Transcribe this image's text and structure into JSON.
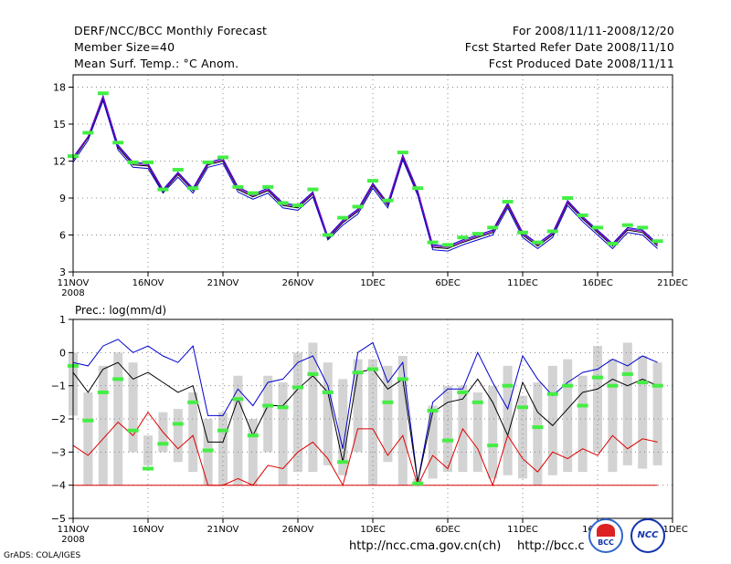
{
  "header": {
    "title": "DERF/NCC/BCC Monthly Forecast",
    "member_size": "Member Size=40",
    "variable": "Mean Surf. Temp.: °C Anom.",
    "period": "For 2008/11/11-2008/12/20",
    "started": "Fcst Started Refer Date 2008/11/10",
    "produced": "Fcst Produced Date 2008/11/11"
  },
  "footer": {
    "url1": "http://ncc.cma.gov.cn(ch)",
    "url2": "http://bcc.c",
    "grads": "GrADS: COLA/IGES",
    "logo1": "BCC",
    "logo2": "NCC"
  },
  "colors": {
    "blue": "#0000cc",
    "black": "#000000",
    "red": "#dd0000",
    "green": "#44ee44",
    "purple": "#9900cc",
    "bar": "#d3d3d3",
    "grid": "#888888"
  },
  "chart_data": [
    {
      "type": "line",
      "title": "Mean Surf. Temp.: °C Anom.",
      "x_days": 40,
      "xticks": [
        {
          "day": 1,
          "label": "11NOV",
          "sub": "2008"
        },
        {
          "day": 6,
          "label": "16NOV"
        },
        {
          "day": 11,
          "label": "21NOV"
        },
        {
          "day": 16,
          "label": "26NOV"
        },
        {
          "day": 21,
          "label": "1DEC"
        },
        {
          "day": 26,
          "label": "6DEC"
        },
        {
          "day": 31,
          "label": "11DEC"
        },
        {
          "day": 36,
          "label": "16DEC"
        },
        {
          "day": 41,
          "label": "21DEC"
        }
      ],
      "ylim": [
        3,
        19
      ],
      "yticks": [
        3,
        6,
        9,
        12,
        15,
        18
      ],
      "series": [
        {
          "name": "upper",
          "color": "#0000cc",
          "values": [
            12.3,
            14.0,
            17.3,
            13.3,
            11.9,
            11.8,
            9.7,
            11.1,
            9.8,
            11.9,
            12.2,
            9.9,
            9.3,
            9.8,
            8.6,
            8.4,
            9.5,
            5.9,
            7.2,
            8.1,
            10.2,
            8.6,
            12.5,
            9.6,
            5.2,
            5.1,
            5.6,
            6.0,
            6.4,
            8.6,
            6.2,
            5.3,
            6.2,
            8.8,
            7.5,
            6.4,
            5.3,
            6.6,
            6.4,
            5.3
          ]
        },
        {
          "name": "mean",
          "color": "#000000",
          "values": [
            12.1,
            13.9,
            17.1,
            13.1,
            11.7,
            11.6,
            9.5,
            10.9,
            9.6,
            11.7,
            12.0,
            9.7,
            9.1,
            9.6,
            8.4,
            8.2,
            9.3,
            5.7,
            7.0,
            7.9,
            10.0,
            8.4,
            12.3,
            9.4,
            5.0,
            4.9,
            5.4,
            5.8,
            6.2,
            8.4,
            6.0,
            5.1,
            6.0,
            8.6,
            7.3,
            6.2,
            5.1,
            6.4,
            6.2,
            5.1
          ]
        },
        {
          "name": "lower",
          "color": "#0000cc",
          "values": [
            11.9,
            13.7,
            16.9,
            12.9,
            11.5,
            11.4,
            9.4,
            10.7,
            9.4,
            11.5,
            11.8,
            9.5,
            8.9,
            9.4,
            8.2,
            8.0,
            9.1,
            5.6,
            6.8,
            7.7,
            9.8,
            8.2,
            12.1,
            9.2,
            4.8,
            4.7,
            5.2,
            5.6,
            6.0,
            8.2,
            5.8,
            4.9,
            5.8,
            8.4,
            7.1,
            6.0,
            4.9,
            6.2,
            6.0,
            4.9
          ]
        },
        {
          "name": "purple",
          "color": "#9900cc",
          "values": [
            12.2,
            14.0,
            17.2,
            13.2,
            11.8,
            11.7,
            9.6,
            11.0,
            9.7,
            11.8,
            12.1,
            9.8,
            9.2,
            9.7,
            8.5,
            8.3,
            9.4,
            5.8,
            7.1,
            8.0,
            10.1,
            8.5,
            12.4,
            9.5,
            5.1,
            5.0,
            5.5,
            5.9,
            6.3,
            8.5,
            6.1,
            5.2,
            6.1,
            8.7,
            7.4,
            6.3,
            5.2,
            6.5,
            6.3,
            5.2
          ]
        }
      ],
      "markers": {
        "name": "observed",
        "color": "#44ee44",
        "values": [
          12.4,
          14.3,
          17.5,
          13.5,
          11.9,
          11.9,
          9.7,
          11.3,
          9.8,
          11.9,
          12.3,
          9.9,
          9.4,
          9.9,
          8.6,
          8.4,
          9.7,
          6.0,
          7.4,
          8.3,
          10.4,
          8.8,
          12.7,
          9.8,
          5.4,
          5.2,
          5.8,
          6.1,
          6.6,
          8.7,
          6.2,
          5.4,
          6.3,
          9.0,
          7.6,
          6.6,
          5.3,
          6.8,
          6.6,
          5.5
        ]
      }
    },
    {
      "type": "line",
      "title": "Prec.: log(mm/d)",
      "x_days": 40,
      "xticks": [
        {
          "day": 1,
          "label": "11NOV",
          "sub": "2008"
        },
        {
          "day": 6,
          "label": "16NOV"
        },
        {
          "day": 11,
          "label": "21NOV"
        },
        {
          "day": 16,
          "label": "26NOV"
        },
        {
          "day": 21,
          "label": "1DEC"
        },
        {
          "day": 26,
          "label": "6DEC"
        },
        {
          "day": 31,
          "label": "11DEC"
        },
        {
          "day": 36,
          "label": "16DEC"
        },
        {
          "day": 41,
          "label": "21DEC"
        }
      ],
      "ylim": [
        -5,
        1
      ],
      "yticks": [
        -5,
        -4,
        -3,
        -2,
        -1,
        0,
        1
      ],
      "bars": {
        "name": "ensemble-range",
        "color": "#d3d3d3",
        "values": [
          [
            -1.9,
            0.0
          ],
          [
            -4.0,
            -1.2
          ],
          [
            -4.0,
            -0.4
          ],
          [
            -4.0,
            0.0
          ],
          [
            -3.0,
            -0.3
          ],
          [
            -3.4,
            -2.5
          ],
          [
            -3.0,
            -1.8
          ],
          [
            -3.3,
            -1.7
          ],
          [
            -3.6,
            -1.2
          ],
          [
            -4.0,
            -2.0
          ],
          [
            -4.0,
            -1.8
          ],
          [
            -4.0,
            -0.7
          ],
          [
            -4.0,
            -2.0
          ],
          [
            -3.0,
            -0.7
          ],
          [
            -4.0,
            -0.9
          ],
          [
            -3.6,
            0.0
          ],
          [
            -3.6,
            0.3
          ],
          [
            -3.4,
            -0.3
          ],
          [
            -3.7,
            -0.8
          ],
          [
            -3.0,
            -0.2
          ],
          [
            -4.0,
            -0.2
          ],
          [
            -3.3,
            -0.4
          ],
          [
            -4.0,
            -0.1
          ],
          [
            -4.0,
            -3.8
          ],
          [
            -3.8,
            -1.6
          ],
          [
            -3.6,
            -1.0
          ],
          [
            -3.6,
            -1.0
          ],
          [
            -3.6,
            -1.2
          ],
          [
            -3.8,
            -1.0
          ],
          [
            -3.7,
            -0.4
          ],
          [
            -3.8,
            -1.3
          ],
          [
            -4.0,
            -0.9
          ],
          [
            -3.7,
            -0.4
          ],
          [
            -3.6,
            -0.2
          ],
          [
            -3.6,
            -0.7
          ],
          [
            -3.0,
            0.2
          ],
          [
            -3.6,
            -0.2
          ],
          [
            -3.4,
            0.3
          ],
          [
            -3.5,
            -0.1
          ],
          [
            -3.4,
            -0.3
          ]
        ]
      },
      "series": [
        {
          "name": "upper",
          "color": "#0000cc",
          "values": [
            -0.3,
            -0.4,
            0.2,
            0.4,
            0.0,
            0.2,
            -0.1,
            -0.3,
            0.2,
            -1.9,
            -1.9,
            -1.1,
            -1.6,
            -0.9,
            -0.8,
            -0.3,
            -0.1,
            -1.0,
            -2.9,
            0.0,
            0.3,
            -0.9,
            -0.3,
            -3.9,
            -1.5,
            -1.1,
            -1.1,
            0.0,
            -0.9,
            -1.7,
            -0.1,
            -0.8,
            -1.3,
            -0.9,
            -0.6,
            -0.5,
            -0.2,
            -0.4,
            -0.1,
            -0.3
          ]
        },
        {
          "name": "mean",
          "color": "#000000",
          "values": [
            -0.6,
            -1.2,
            -0.5,
            -0.3,
            -0.8,
            -0.6,
            -0.9,
            -1.2,
            -1.0,
            -2.7,
            -2.7,
            -1.4,
            -2.5,
            -1.6,
            -1.6,
            -1.1,
            -0.7,
            -1.2,
            -3.3,
            -0.6,
            -0.5,
            -1.1,
            -0.8,
            -3.9,
            -1.8,
            -1.5,
            -1.4,
            -0.8,
            -1.5,
            -2.5,
            -0.9,
            -1.8,
            -2.2,
            -1.7,
            -1.2,
            -1.1,
            -0.8,
            -1.0,
            -0.8,
            -1.0
          ]
        },
        {
          "name": "lower",
          "color": "#dd0000",
          "values": [
            -2.8,
            -3.1,
            -2.6,
            -2.1,
            -2.5,
            -1.8,
            -2.4,
            -2.9,
            -2.5,
            -4.0,
            -4.0,
            -3.8,
            -4.0,
            -3.4,
            -3.5,
            -3.0,
            -2.7,
            -3.2,
            -4.0,
            -2.3,
            -2.3,
            -3.1,
            -2.5,
            -4.0,
            -3.1,
            -3.5,
            -2.3,
            -2.9,
            -4.0,
            -2.5,
            -3.2,
            -3.6,
            -3.0,
            -3.2,
            -2.9,
            -3.1,
            -2.5,
            -2.9,
            -2.6,
            -2.7
          ]
        },
        {
          "name": "floor",
          "color": "#dd0000",
          "values": [
            -4.0,
            -4.0,
            -4.0,
            -4.0,
            -4.0,
            -4.0,
            -4.0,
            -4.0,
            -4.0,
            -4.0,
            -4.0,
            -4.0,
            -4.0,
            -4.0,
            -4.0,
            -4.0,
            -4.0,
            -4.0,
            -4.0,
            -4.0,
            -4.0,
            -4.0,
            -4.0,
            -4.0,
            -4.0,
            -4.0,
            -4.0,
            -4.0,
            -4.0,
            -4.0,
            -4.0,
            -4.0,
            -4.0,
            -4.0,
            -4.0,
            -4.0,
            -4.0,
            -4.0,
            -4.0,
            -4.0
          ]
        }
      ],
      "markers": {
        "name": "observed",
        "color": "#44ee44",
        "values": [
          -0.4,
          -2.05,
          -1.2,
          -0.8,
          -2.35,
          -3.5,
          -2.75,
          -2.15,
          -1.5,
          -2.95,
          -2.35,
          -1.4,
          -2.5,
          -1.6,
          -1.65,
          -1.05,
          -0.65,
          -1.2,
          -3.3,
          -0.6,
          -0.5,
          -1.5,
          -0.8,
          -3.95,
          -1.75,
          -2.65,
          -1.2,
          -1.5,
          -2.8,
          -1.0,
          -1.65,
          -2.25,
          -1.25,
          -1.0,
          -1.6,
          -0.75,
          -1.0,
          -0.65,
          -0.9,
          -1.0
        ]
      }
    }
  ]
}
